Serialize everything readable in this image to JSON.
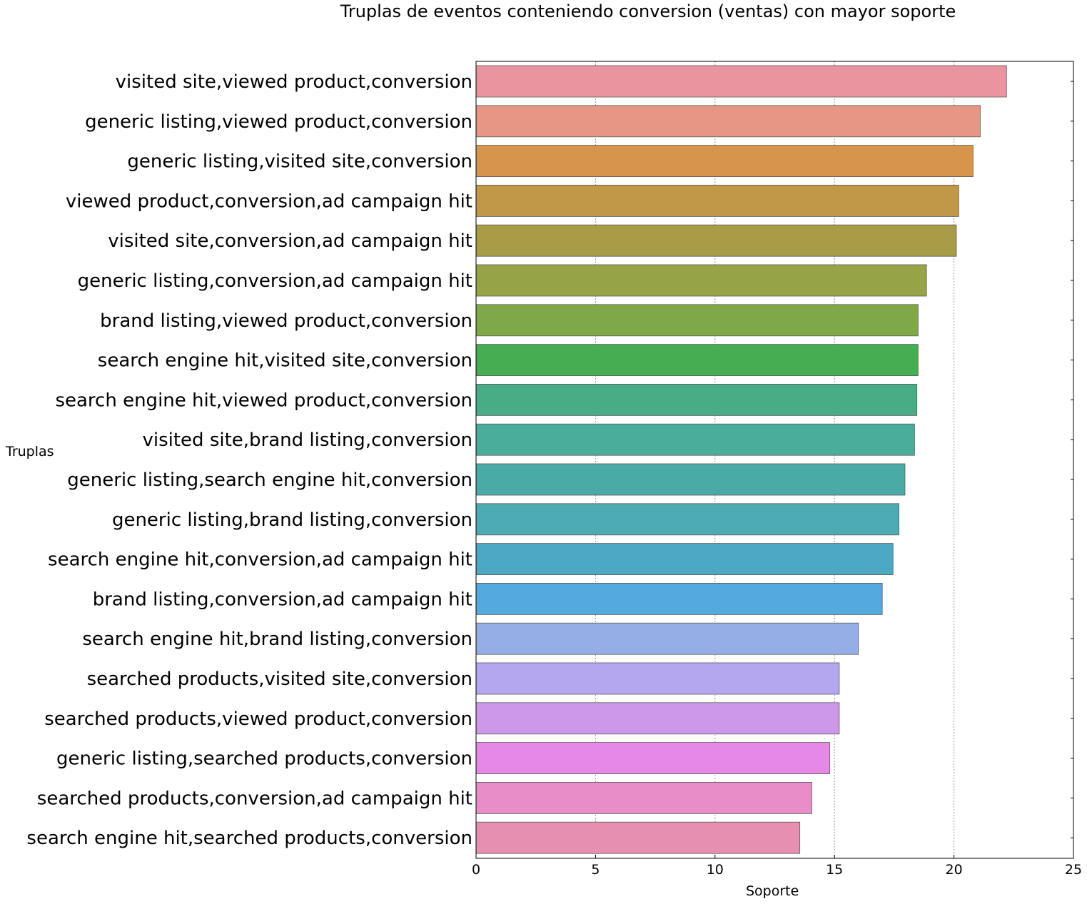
{
  "chart_data": {
    "type": "bar",
    "orientation": "horizontal",
    "title": "Truplas de eventos conteniendo conversion (ventas) con mayor soporte",
    "xlabel": "Soporte",
    "ylabel": "Truplas",
    "xlim": [
      0,
      25
    ],
    "xticks": [
      "0",
      "5",
      "10",
      "15",
      "20",
      "25"
    ],
    "grid": "vertical dashed",
    "categories": [
      "visited site,viewed product,conversion",
      "generic listing,viewed product,conversion",
      "generic listing,visited site,conversion",
      "viewed product,conversion,ad campaign hit",
      "visited site,conversion,ad campaign hit",
      "generic listing,conversion,ad campaign hit",
      "brand listing,viewed product,conversion",
      "search engine hit,visited site,conversion",
      "search engine hit,viewed product,conversion",
      "visited site,brand listing,conversion",
      "generic listing,search engine hit,conversion",
      "generic listing,brand listing,conversion",
      "search engine hit,conversion,ad campaign hit",
      "brand listing,conversion,ad campaign hit",
      "search engine hit,brand listing,conversion",
      "searched products,visited site,conversion",
      "searched products,viewed product,conversion",
      "generic listing,searched products,conversion",
      "searched products,conversion,ad campaign hit",
      "search engine hit,searched products,conversion"
    ],
    "values": [
      22.2,
      21.1,
      20.8,
      20.2,
      20.1,
      18.85,
      18.5,
      18.5,
      18.45,
      18.35,
      17.95,
      17.7,
      17.45,
      17.0,
      16.0,
      15.2,
      15.2,
      14.8,
      14.05,
      13.55
    ],
    "colors": [
      "#e9949f",
      "#e89684",
      "#d6944d",
      "#c09848",
      "#a89c47",
      "#97a347",
      "#7fa948",
      "#47ad52",
      "#48ad85",
      "#4aad9c",
      "#4aaaa6",
      "#4dabb5",
      "#4da8c5",
      "#54aadd",
      "#95aee6",
      "#b4a6ef",
      "#ce98e8",
      "#e688e6",
      "#e78ec8",
      "#e78fb1"
    ]
  }
}
